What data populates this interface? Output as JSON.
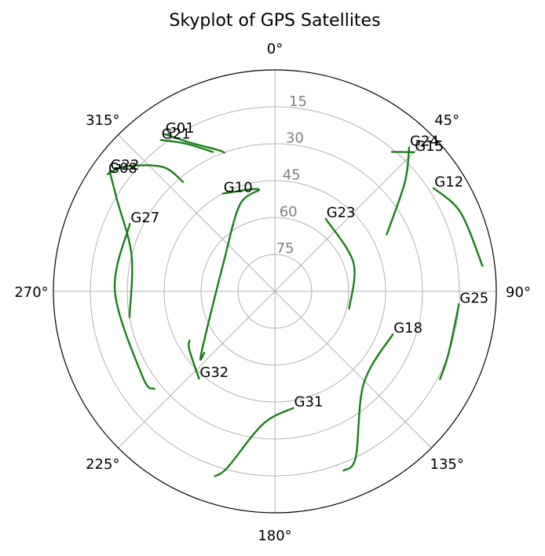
{
  "chart_data": {
    "type": "polar-line",
    "title": "Skyplot of GPS Satellites",
    "theta_zero": "top",
    "theta_direction": "clockwise",
    "r_axis_inverted_from_elevation": true,
    "r_range": [
      0,
      90
    ],
    "grid": true,
    "azimuth_ticks": [
      "0°",
      "45°",
      "90°",
      "135°",
      "180°",
      "225°",
      "270°",
      "315°"
    ],
    "elevation_ticks": [
      {
        "label": "15",
        "value": 15
      },
      {
        "label": "30",
        "value": 30
      },
      {
        "label": "45",
        "value": 45
      },
      {
        "label": "60",
        "value": 60
      },
      {
        "label": "75",
        "value": 75
      }
    ],
    "series_color": "#1a7f1a",
    "series": [
      {
        "name": "G01",
        "points": [
          [
            325,
            12
          ],
          [
            330,
            20
          ],
          [
            338,
            28
          ],
          [
            340,
            30
          ]
        ]
      },
      {
        "name": "G21",
        "points": [
          [
            323,
            13
          ],
          [
            329,
            20
          ],
          [
            336,
            28
          ]
        ]
      },
      {
        "name": "G08",
        "points": [
          [
            305,
            7
          ],
          [
            310,
            11
          ],
          [
            318,
            22
          ],
          [
            320,
            32
          ]
        ]
      },
      {
        "name": "G22",
        "points": [
          [
            306,
            7
          ],
          [
            300,
            16
          ],
          [
            284,
            30
          ],
          [
            260,
            30
          ]
        ]
      },
      {
        "name": "G27",
        "points": [
          [
            295,
            25
          ],
          [
            270,
            25
          ],
          [
            237,
            26
          ],
          [
            231,
            27
          ]
        ]
      },
      {
        "name": "G10",
        "points": [
          [
            332,
            45
          ],
          [
            351,
            48
          ],
          [
            338,
            52
          ],
          [
            300,
            66
          ],
          [
            230,
            51
          ],
          [
            229,
            52
          ]
        ]
      },
      {
        "name": "G23",
        "points": [
          [
            35,
            54
          ],
          [
            70,
            56
          ],
          [
            103,
            59
          ]
        ]
      },
      {
        "name": "G15",
        "points": [
          [
            45,
            10
          ],
          [
            40,
            16
          ]
        ]
      },
      {
        "name": "G24",
        "points": [
          [
            43,
            10
          ],
          [
            50,
            21
          ],
          [
            63,
            39
          ]
        ]
      },
      {
        "name": "G12",
        "points": [
          [
            57,
            13
          ],
          [
            67,
            8
          ],
          [
            83,
            5
          ]
        ]
      },
      {
        "name": "G25",
        "points": [
          [
            94,
            15
          ],
          [
            110,
            15
          ],
          [
            118,
            14
          ]
        ]
      },
      {
        "name": "G18",
        "points": [
          [
            110,
            39
          ],
          [
            136,
            38
          ],
          [
            154,
            15
          ],
          [
            159,
            12
          ]
        ]
      },
      {
        "name": "G31",
        "points": [
          [
            171,
            42
          ],
          [
            185,
            36
          ],
          [
            195,
            16
          ],
          [
            198,
            11
          ]
        ]
      },
      {
        "name": "G32",
        "points": [
          [
            221,
            43
          ],
          [
            236,
            48
          ],
          [
            240,
            50
          ]
        ]
      }
    ]
  }
}
